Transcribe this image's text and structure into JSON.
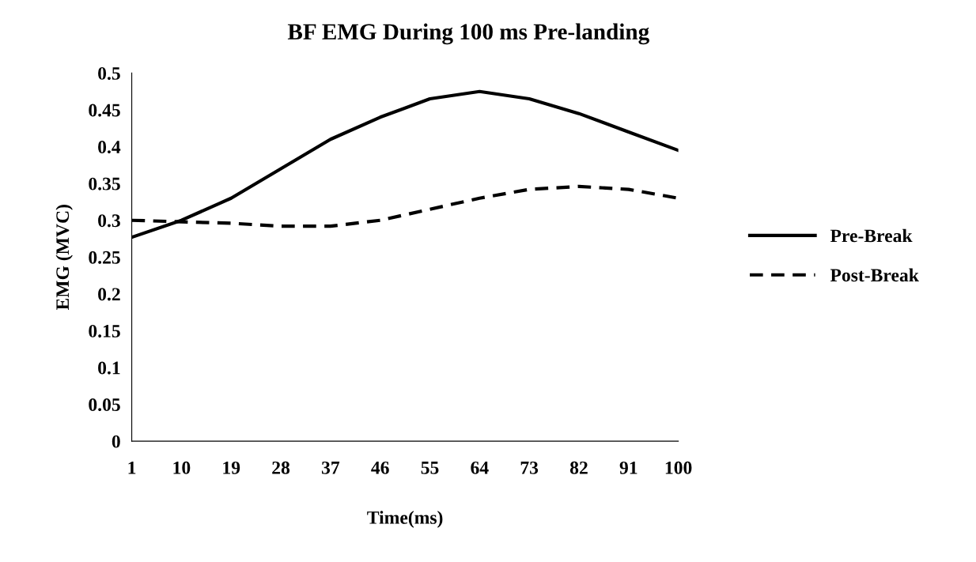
{
  "chart_data": {
    "type": "line",
    "title": "BF EMG During 100 ms Pre-landing",
    "xlabel": "Time(ms)",
    "ylabel": "EMG (MVC)",
    "x": [
      1,
      10,
      19,
      28,
      37,
      46,
      55,
      64,
      73,
      82,
      91,
      100
    ],
    "series": [
      {
        "name": "Pre-Break",
        "color": "#000000",
        "line_style": "solid",
        "values": [
          0.277,
          0.3,
          0.33,
          0.37,
          0.41,
          0.44,
          0.465,
          0.475,
          0.465,
          0.445,
          0.42,
          0.395
        ]
      },
      {
        "name": "Post-Break",
        "color": "#000000",
        "line_style": "dashed",
        "values": [
          0.3,
          0.298,
          0.296,
          0.292,
          0.292,
          0.3,
          0.315,
          0.33,
          0.342,
          0.346,
          0.342,
          0.33
        ]
      }
    ],
    "xlim": [
      1,
      100
    ],
    "xticks": [
      1,
      10,
      19,
      28,
      37,
      46,
      55,
      64,
      73,
      82,
      91,
      100
    ],
    "ylim": [
      0,
      0.5
    ],
    "yticks": [
      0,
      0.05,
      0.1,
      0.15,
      0.2,
      0.25,
      0.3,
      0.35,
      0.4,
      0.45,
      0.5
    ],
    "grid": false,
    "legend": "right"
  }
}
